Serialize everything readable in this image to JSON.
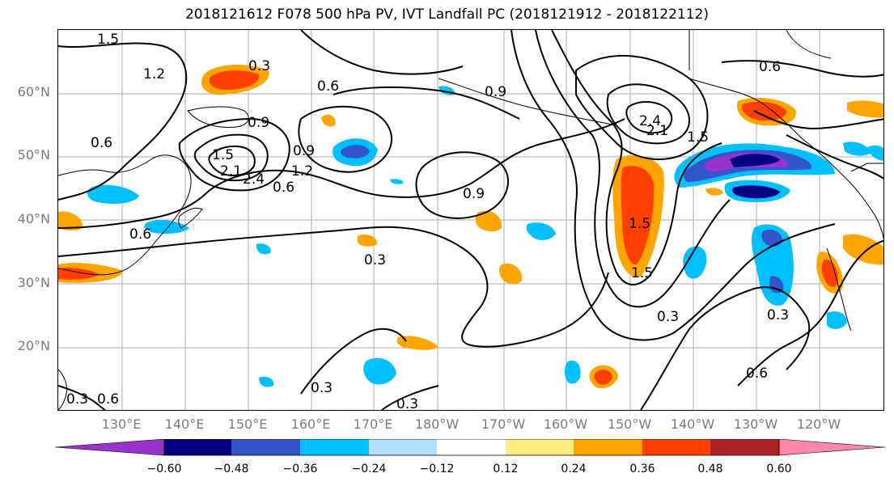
{
  "title": "2018121612 F078 500 hPa PV, IVT Landfall PC (2018121912 - 2018122112)",
  "lat_labels": [
    "60°N",
    "50°N",
    "40°N",
    "30°N",
    "20°N"
  ],
  "lon_labels": [
    "130°E",
    "140°E",
    "150°E",
    "160°E",
    "170°E",
    "180°W",
    "170°W",
    "160°W",
    "150°W",
    "140°W",
    "130°W",
    "120°W"
  ],
  "contour_labels": [
    "1.5",
    "1.2",
    "0.6",
    "0.3",
    "0.6",
    "0.9",
    "0.6",
    "0.9",
    "2.1",
    "2.4",
    "1.5",
    "1.2",
    "0.6",
    "0.9",
    "0.9",
    "2.4",
    "2.1",
    "1.5",
    "0.6",
    "0.3",
    "0.3",
    "1.5",
    "1.5",
    "0.3",
    "0.6",
    "0.3",
    "0.3",
    "0.6",
    "0.3"
  ],
  "colorbar": {
    "ticks": [
      "−0.60",
      "−0.48",
      "−0.36",
      "−0.24",
      "−0.12",
      "0.12",
      "0.24",
      "0.36",
      "0.48",
      "0.60"
    ],
    "colors": [
      "#9933cc",
      "#000080",
      "#3355cc",
      "#00bfff",
      "#b3e0ff",
      "#ffffff",
      "#ffea80",
      "#ffa500",
      "#ff4000",
      "#b22222",
      "#ff88aa"
    ]
  }
}
